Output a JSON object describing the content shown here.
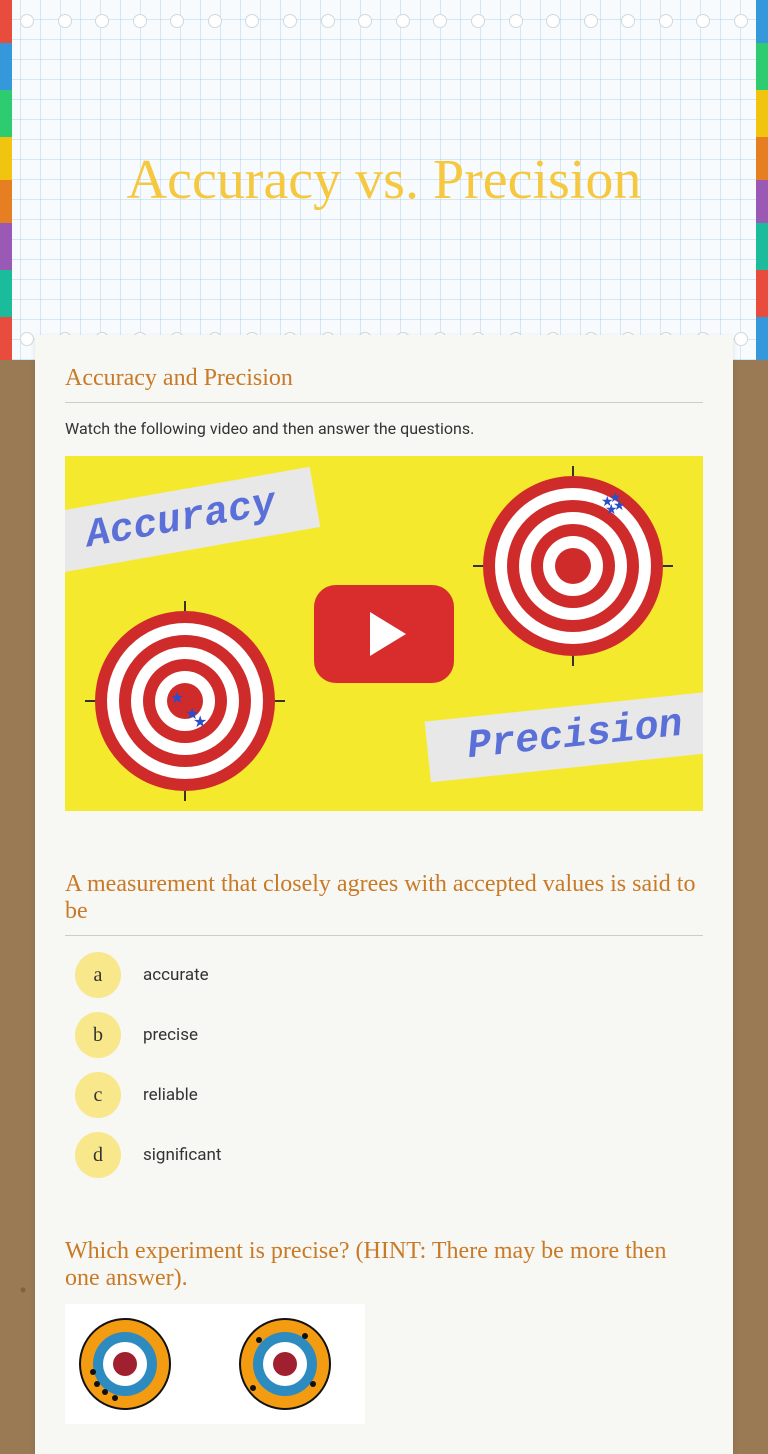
{
  "title": {
    "text": "Accuracy vs. Precision",
    "color": "#f5c83f"
  },
  "accent_color": "#c97a26",
  "section1": {
    "title": "Accuracy and Precision",
    "sub": "Watch the following video and then answer the questions."
  },
  "video": {
    "banner_accuracy": "Accuracy",
    "banner_precision": "Precision",
    "bg_color": "#f5e92e",
    "play_color": "#d92d2d",
    "target_colors": {
      "outer": "#d02b2b",
      "inner": "#ffffff"
    }
  },
  "question1": {
    "title": "A measurement that closely agrees with accepted values is said to be",
    "options": [
      {
        "letter": "a",
        "text": "accurate"
      },
      {
        "letter": "b",
        "text": "precise"
      },
      {
        "letter": "c",
        "text": "reliable"
      },
      {
        "letter": "d",
        "text": "significant"
      }
    ]
  },
  "question2": {
    "title": "Which experiment is precise? (HINT: There may be more then one answer).",
    "target_colors": {
      "ring1": "#f39c12",
      "ring2": "#2e8bc0",
      "ring3": "#ffffff",
      "center": "#a02030"
    }
  }
}
